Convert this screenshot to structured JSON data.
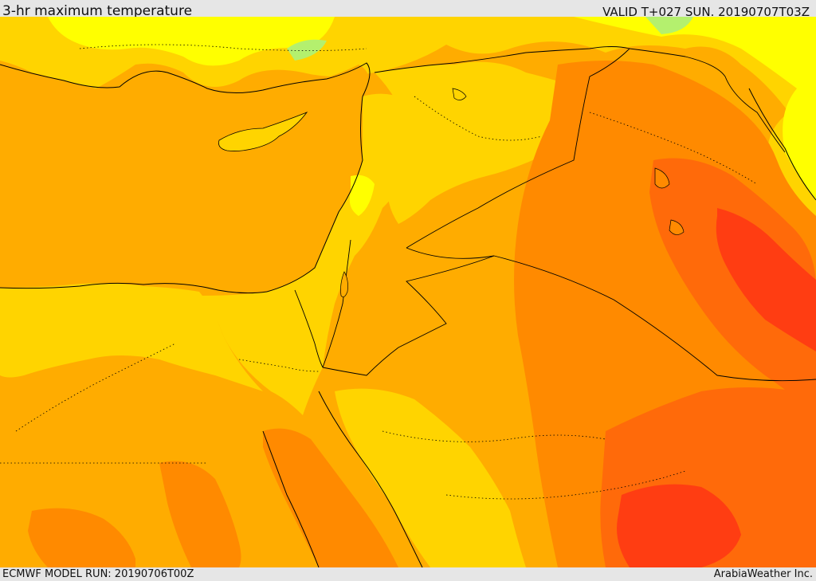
{
  "header": {
    "title": "3-hr maximum temperature",
    "valid": "VALID T+027 SUN. 20190707T03Z"
  },
  "footer": {
    "model_run": "ECMWF MODEL RUN: 20190706T00Z",
    "credit": "ArabiaWeather Inc."
  },
  "colors": {
    "sea": "#ffac00",
    "warm_orange": "#ff8a00",
    "hot": "#ff6a0a",
    "hottest": "#ff3d12",
    "yellow_orange": "#ffd400",
    "yellow": "#ffff00",
    "light_green": "#b4f06e",
    "border_line": "#000000"
  }
}
